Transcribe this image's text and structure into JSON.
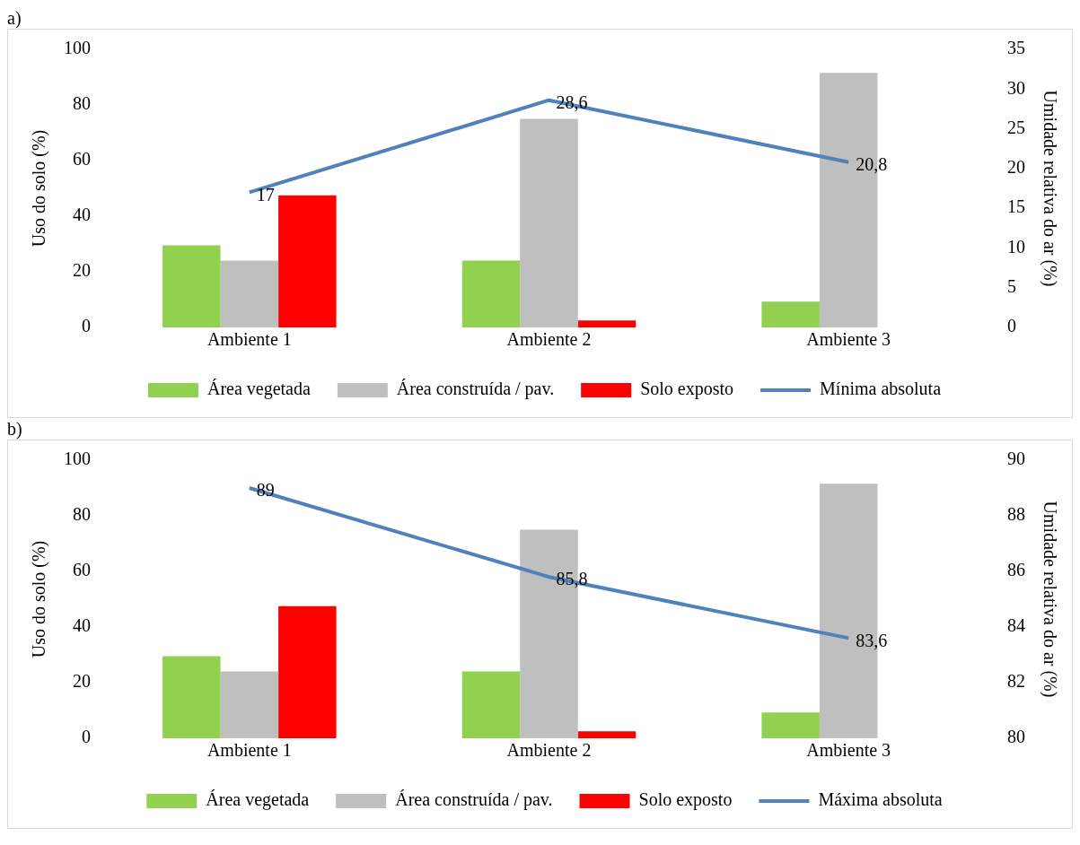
{
  "chart_data": [
    {
      "type": "bar",
      "title": "a)",
      "categories": [
        "Ambiente 1",
        "Ambiente 2",
        "Ambiente 3"
      ],
      "ylabel": "Uso do solo (%)",
      "y2label": "Umidade relativa do ar (%)",
      "ylim": [
        0,
        100
      ],
      "yticks": [
        0,
        20,
        40,
        60,
        80,
        100
      ],
      "y2lim": [
        0,
        35
      ],
      "y2ticks": [
        0,
        5,
        10,
        15,
        20,
        25,
        30,
        35
      ],
      "legend": "bottom",
      "series": [
        {
          "name": "Área vegetada",
          "color": "#92d050",
          "values": [
            29.5,
            24,
            9.3
          ]
        },
        {
          "name": "Área construída / pav.",
          "color": "#bfbfbf",
          "values": [
            24,
            75,
            91.5
          ]
        },
        {
          "name": "Solo exposto",
          "color": "#ff0000",
          "values": [
            47.5,
            2.5,
            0
          ]
        },
        {
          "name": "Mínima absoluta",
          "type": "line",
          "axis": "y2",
          "color": "#4f81bd",
          "marker": "none",
          "values": [
            17,
            28.6,
            20.8
          ],
          "value_labels": [
            "17",
            "28,6",
            "20,8"
          ]
        }
      ]
    },
    {
      "type": "bar",
      "title": "b)",
      "categories": [
        "Ambiente 1",
        "Ambiente 2",
        "Ambiente 3"
      ],
      "ylabel": "Uso do solo (%)",
      "y2label": "Umidade relativa do ar (%)",
      "ylim": [
        0,
        100
      ],
      "yticks": [
        0,
        20,
        40,
        60,
        80,
        100
      ],
      "y2lim": [
        80,
        90
      ],
      "y2ticks": [
        80,
        82,
        84,
        86,
        88,
        90
      ],
      "legend": "bottom",
      "series": [
        {
          "name": "Área vegetada",
          "color": "#92d050",
          "values": [
            29.5,
            24,
            9.3
          ]
        },
        {
          "name": "Área construída / pav.",
          "color": "#bfbfbf",
          "values": [
            24,
            75,
            91.5
          ]
        },
        {
          "name": "Solo exposto",
          "color": "#ff0000",
          "values": [
            47.5,
            2.5,
            0
          ]
        },
        {
          "name": "Máxima absoluta",
          "type": "line",
          "axis": "y2",
          "color": "#4f81bd",
          "marker": "none",
          "values": [
            89,
            85.8,
            83.6
          ],
          "value_labels": [
            "89",
            "85,8",
            "83,6"
          ]
        }
      ]
    }
  ]
}
